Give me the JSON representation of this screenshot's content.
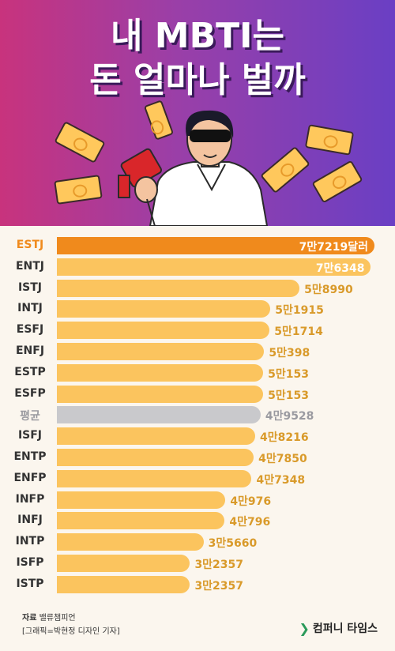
{
  "header": {
    "title_line1": "내 MBTI는",
    "title_line2": "돈 얼마나 벌까"
  },
  "colors": {
    "top_bar": "#f08a1c",
    "bar": "#fbc45e",
    "average_bar": "#c9c9cc",
    "average_text": "#9a9aa0",
    "value_text": "#d99a2a"
  },
  "chart_data": {
    "type": "bar",
    "orientation": "horizontal",
    "categories": [
      "ESTJ",
      "ENTJ",
      "ISTJ",
      "INTJ",
      "ESFJ",
      "ENFJ",
      "ESTP",
      "ESFP",
      "평균",
      "ISFJ",
      "ENTP",
      "ENFP",
      "INFP",
      "INFJ",
      "INTP",
      "ISFP",
      "ISTP"
    ],
    "values": [
      77219,
      76348,
      58990,
      51915,
      51714,
      50398,
      50153,
      50153,
      49528,
      48216,
      47850,
      47348,
      40976,
      40796,
      35660,
      32357,
      32357
    ],
    "value_labels": [
      "7만7219달러",
      "7만6348",
      "5만8990",
      "5만1915",
      "5만1714",
      "5만398",
      "5만153",
      "5만153",
      "4만9528",
      "4만8216",
      "4만7850",
      "4만7348",
      "4만976",
      "4만796",
      "3만5660",
      "3만2357",
      "3만2357"
    ],
    "highlight_index": 0,
    "average_index": 8,
    "xlim": [
      0,
      80000
    ]
  },
  "footer": {
    "source_label": "자료",
    "source_value": "밸류챔피언",
    "credit": "[그래픽=박현정 디자인 기자]",
    "brand_mark": "❯",
    "brand_name": "컴퍼니 타임스"
  }
}
